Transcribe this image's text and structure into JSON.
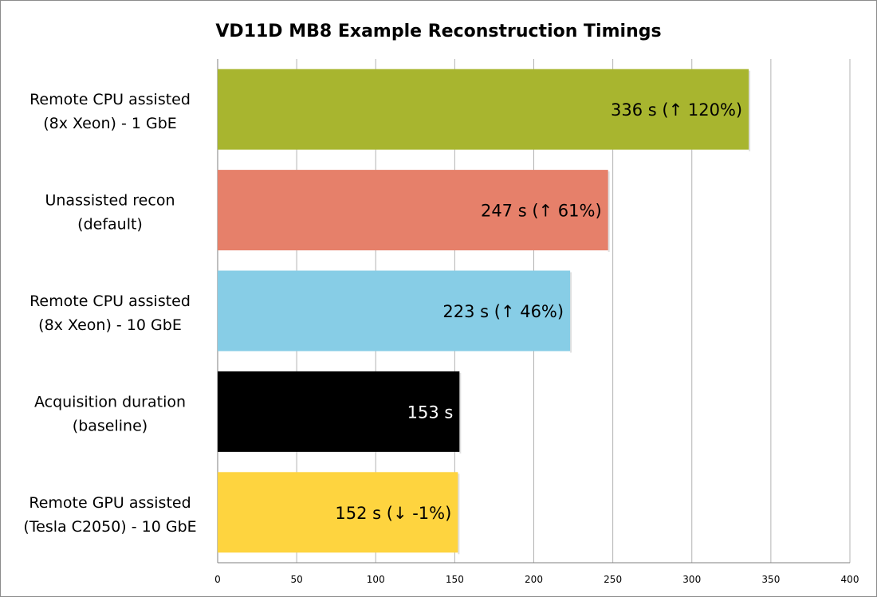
{
  "chart_data": {
    "type": "bar",
    "orientation": "horizontal",
    "title": "VD11D MB8 Example Reconstruction Timings",
    "xlabel": "",
    "ylabel": "",
    "xlim": [
      0,
      400
    ],
    "x_ticks": [
      "0",
      "50",
      "100",
      "150",
      "200",
      "250",
      "300",
      "350",
      "400"
    ],
    "grid": "vertical",
    "legend": "none",
    "categories": [
      [
        "Remote CPU assisted",
        "(8x Xeon) - 1 GbE"
      ],
      [
        "Unassisted recon",
        "(default)"
      ],
      [
        "Remote CPU assisted",
        "(8x Xeon) - 10 GbE"
      ],
      [
        "Acquisition duration",
        "(baseline)"
      ],
      [
        "Remote GPU assisted",
        "(Tesla C2050) - 10 GbE"
      ]
    ],
    "values": [
      336,
      247,
      223,
      153,
      152
    ],
    "data_labels": [
      "336 s (↑ 120%)",
      "247 s (↑ 61%)",
      "223 s (↑ 46%)",
      "153 s",
      "152 s (↓ -1%)"
    ],
    "colors": [
      "#a8b52f",
      "#e6806a",
      "#87cde6",
      "#000000",
      "#fed43f"
    ],
    "label_colors": [
      "#000000",
      "#000000",
      "#000000",
      "#ffffff",
      "#000000"
    ]
  }
}
